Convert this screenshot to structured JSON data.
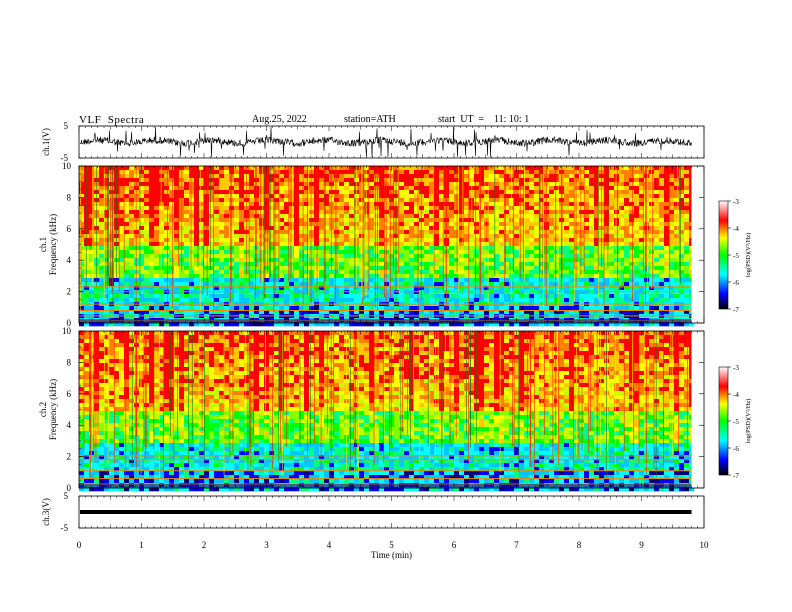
{
  "header": {
    "title": "VLF  Spectra",
    "date": "Aug.25, 2022",
    "station": "station=ATH",
    "start": "start  UT  =    11: 10: 1"
  },
  "chart_data": [
    {
      "type": "line",
      "panel": "ch1-waveform",
      "ylabel": "ch.1(V)",
      "yticklabels": [
        "5",
        "-5"
      ],
      "ylim": [
        -5,
        5
      ],
      "xlim": [
        0,
        10
      ],
      "series": [
        {
          "name": "",
          "values_note_mean": 0.1
        }
      ]
    },
    {
      "type": "heatmap",
      "panel": "ch1-spectrogram",
      "channel_label": "ch.1",
      "ylabel": "Frequency  (kHz)",
      "y": [
        0,
        2,
        4,
        6,
        8,
        10
      ],
      "yticklabels": [
        "0",
        "2",
        "4",
        "6",
        "8",
        "10"
      ],
      "ylim": [
        0,
        10
      ],
      "xlim": [
        0,
        10
      ],
      "colorbar": {
        "label": "log(PSD)(V²/Hz)",
        "ticks": [
          "-3",
          "-4",
          "-5",
          "-6",
          "-7"
        ],
        "range": [
          -7,
          -3
        ],
        "colors": [
          "#000000",
          "#0000ff",
          "#00ffff",
          "#00ff00",
          "#ffff00",
          "#ff0000",
          "#ffffff"
        ]
      }
    },
    {
      "type": "heatmap",
      "panel": "ch2-spectrogram",
      "channel_label": "ch.2",
      "ylabel": "Frequency  (kHz)",
      "y": [
        0,
        2,
        4,
        6,
        8,
        10
      ],
      "yticklabels": [
        "0",
        "2",
        "4",
        "6",
        "8",
        "10"
      ],
      "ylim": [
        0,
        10
      ],
      "xlim": [
        0,
        10
      ],
      "colorbar": {
        "label": "log(PSD)(V²/Hz)",
        "ticks": [
          "-3",
          "-4",
          "-5",
          "-6",
          "-7"
        ],
        "range": [
          -7,
          -3
        ],
        "colors": [
          "#000000",
          "#0000ff",
          "#00ffff",
          "#00ff00",
          "#ffff00",
          "#ff0000",
          "#ffffff"
        ]
      }
    },
    {
      "type": "line",
      "panel": "ch3-waveform",
      "ylabel": "ch.3(V)",
      "yticklabels": [
        "5",
        "-5"
      ],
      "ylim": [
        -5,
        5
      ],
      "xlim": [
        0,
        10
      ],
      "series": [
        {
          "name": "",
          "level": 0
        }
      ]
    }
  ],
  "xaxis": {
    "label": "Time  (min)",
    "ticks": [
      0,
      1,
      2,
      3,
      4,
      5,
      6,
      7,
      8,
      9,
      10
    ],
    "ticklabels": [
      "0",
      "1",
      "2",
      "3",
      "4",
      "5",
      "6",
      "7",
      "8",
      "9",
      "10"
    ],
    "data_end": 9.8
  }
}
